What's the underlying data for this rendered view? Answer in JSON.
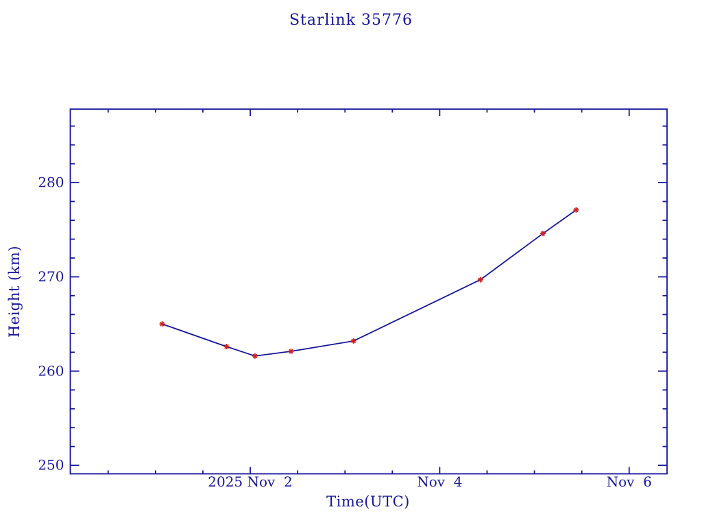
{
  "chart_data": {
    "type": "line",
    "title": "Starlink 35776",
    "xlabel": "Time(UTC)",
    "ylabel": "Height (km)",
    "x_axis": {
      "unit": "days relative to 2025 Nov 2 00:00 UTC",
      "range": [
        -1.9,
        4.4
      ],
      "major_ticks": [
        {
          "t": 0,
          "label": "2025 Nov  2"
        },
        {
          "t": 2,
          "label": "Nov  4"
        },
        {
          "t": 4,
          "label": "Nov  6"
        }
      ],
      "minor_tick_step_days": 0.5
    },
    "y_axis": {
      "range": [
        249.1,
        287.8
      ],
      "major_ticks": [
        {
          "v": 250,
          "label": "250"
        },
        {
          "v": 260,
          "label": "260"
        },
        {
          "v": 270,
          "label": "270"
        },
        {
          "v": 280,
          "label": "280"
        }
      ],
      "minor_tick_step_km": 2
    },
    "series": [
      {
        "name": "height",
        "marker": "asterisk",
        "points": [
          {
            "t": -0.93,
            "height_km": 265.0
          },
          {
            "t": -0.25,
            "height_km": 262.6
          },
          {
            "t": 0.05,
            "height_km": 261.6
          },
          {
            "t": 0.43,
            "height_km": 262.1
          },
          {
            "t": 1.09,
            "height_km": 263.2
          },
          {
            "t": 2.43,
            "height_km": 269.7
          },
          {
            "t": 3.09,
            "height_km": 274.6
          },
          {
            "t": 3.44,
            "height_km": 277.1
          }
        ]
      }
    ],
    "grid": false,
    "legend": null,
    "colors": {
      "axis": "#15159b",
      "text": "#15159b",
      "line": "#15159b",
      "marker": "#cc2020",
      "background": "#ffffff"
    }
  }
}
